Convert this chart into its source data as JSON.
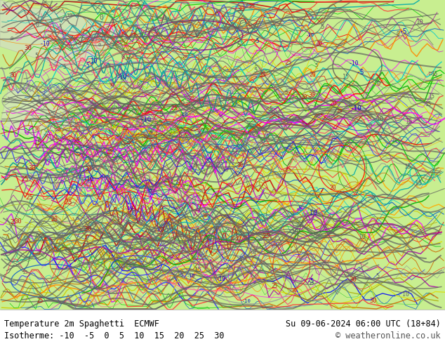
{
  "title_left": "Temperature 2m Spaghetti  ECMWF",
  "title_right": "Su 09-06-2024 06:00 UTC (18+84)",
  "subtitle_left": "Isotherme: -10  -5  0  5  10  15  20  25  30",
  "subtitle_right": "© weatheronline.co.uk",
  "bg_color": "#aae87a",
  "map_area_color": "#b8f07a",
  "border_color": "#000000",
  "text_color": "#000000",
  "copyright_color": "#555555",
  "fig_width": 6.34,
  "fig_height": 4.9,
  "dpi": 100,
  "bottom_bar_height": 0.1,
  "title_fontsize": 8.5,
  "subtitle_fontsize": 8.5,
  "map_lines_colors": [
    "#555555",
    "#ff0000",
    "#0000ff",
    "#00aa00",
    "#ff8800",
    "#aa00aa",
    "#00aaaa",
    "#ffff00"
  ],
  "contour_line_color": "#555555"
}
